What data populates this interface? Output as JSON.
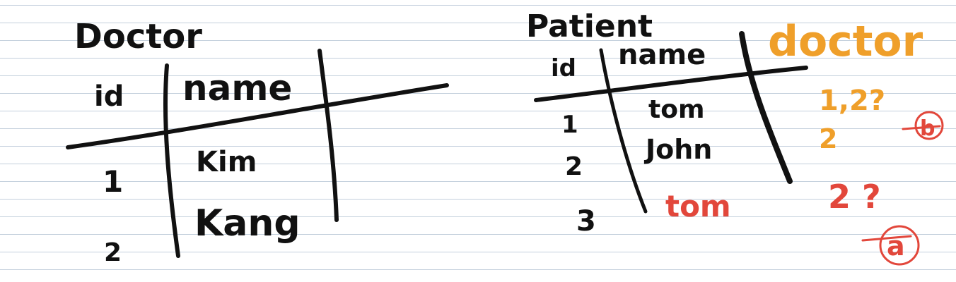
{
  "doctor_table": {
    "title": "Doctor",
    "columns": [
      "id",
      "name"
    ],
    "rows": [
      {
        "id": "1",
        "name": "Kim"
      },
      {
        "id": "2",
        "name": "Kang"
      }
    ]
  },
  "patient_table": {
    "title": "Patient",
    "columns": [
      "id",
      "name"
    ],
    "rows": [
      {
        "id": "1",
        "name": "tom"
      },
      {
        "id": "2",
        "name": "John"
      },
      {
        "id": "3",
        "name": "tom"
      }
    ]
  },
  "annotations": {
    "doctor_header": "doctor",
    "row1_value": "1,2?",
    "row2_value": "2",
    "row3_value": "2 ?",
    "circle_b": "b",
    "circle_a": "a"
  },
  "colors": {
    "ink_black": "#111111",
    "ink_orange": "#ef9f2a",
    "ink_red": "#e2473b",
    "ruled_line": "#c3cfdc"
  }
}
